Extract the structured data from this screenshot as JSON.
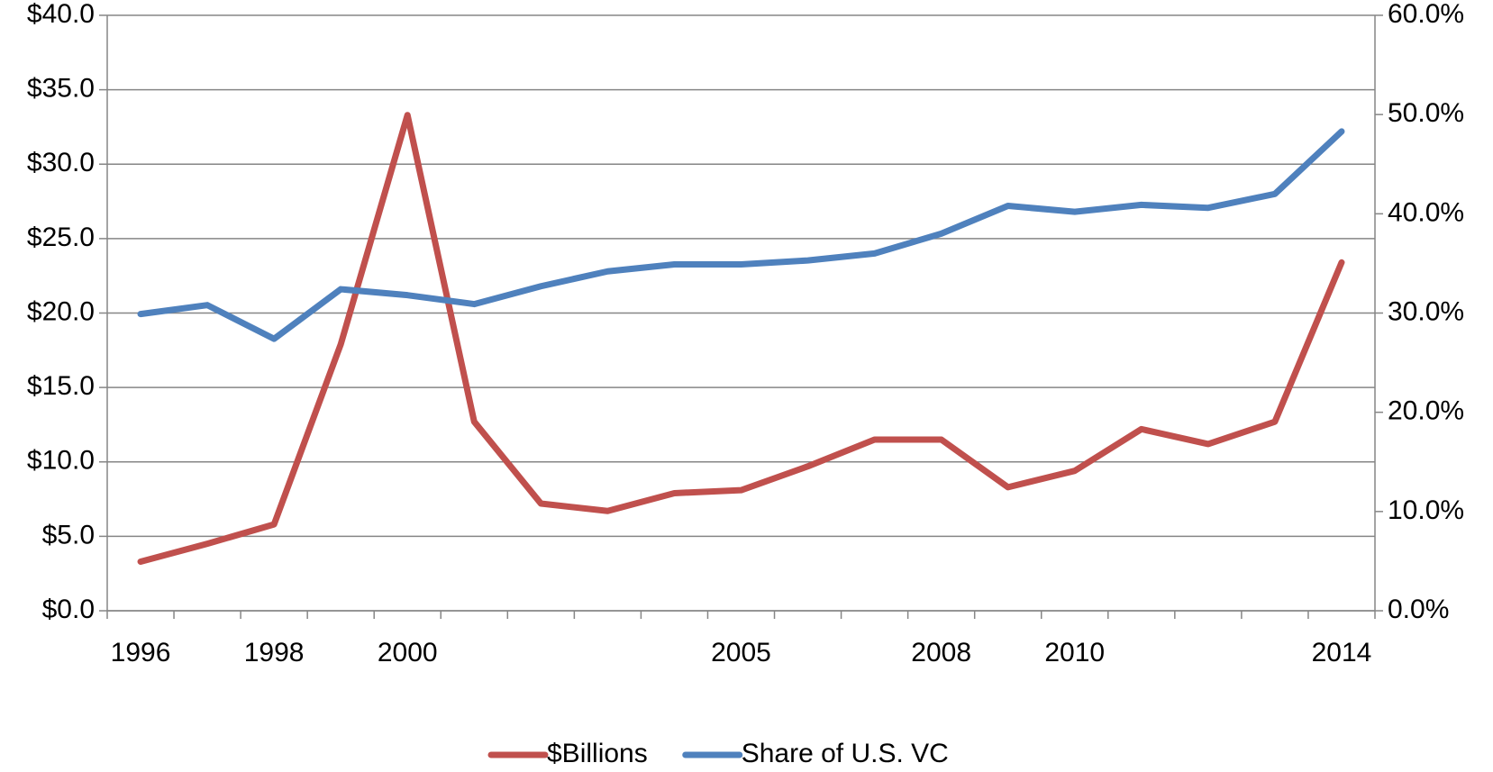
{
  "chart_data": {
    "type": "line",
    "categories": [
      "1996",
      null,
      "1998",
      null,
      "2000",
      null,
      null,
      null,
      null,
      "2005",
      null,
      null,
      "2008",
      null,
      "2010",
      null,
      null,
      null,
      "2014"
    ],
    "series": [
      {
        "name": "$Billions",
        "color": "#c0504d",
        "values": [
          3.3,
          4.5,
          5.8,
          17.9,
          33.3,
          12.7,
          7.2,
          6.7,
          7.9,
          8.1,
          9.7,
          11.5,
          11.5,
          8.3,
          9.4,
          12.2,
          11.2,
          12.7,
          23.4
        ]
      },
      {
        "name": "Share of U.S. VC",
        "color": "#4f81bd",
        "axis": "y2",
        "values": [
          29.9,
          30.8,
          27.4,
          32.4,
          31.8,
          30.9,
          32.7,
          34.2,
          34.9,
          34.9,
          35.3,
          36.0,
          38.0,
          40.8,
          40.2,
          40.9,
          40.6,
          42.0,
          48.3
        ]
      }
    ],
    "ylim": [
      0,
      40
    ],
    "yticks": [
      {
        "value": 0,
        "label": "$0.0"
      },
      {
        "value": 5,
        "label": "$5.0"
      },
      {
        "value": 10,
        "label": "$10.0"
      },
      {
        "value": 15,
        "label": "$15.0"
      },
      {
        "value": 20,
        "label": "$20.0"
      },
      {
        "value": 25,
        "label": "$25.0"
      },
      {
        "value": 30,
        "label": "$30.0"
      },
      {
        "value": 35,
        "label": "$35.0"
      },
      {
        "value": 40,
        "label": "$40.0"
      }
    ],
    "y2lim": [
      0,
      60
    ],
    "y2ticks": [
      {
        "value": 0,
        "label": "0.0%"
      },
      {
        "value": 10,
        "label": "10.0%"
      },
      {
        "value": 20,
        "label": "20.0%"
      },
      {
        "value": 30,
        "label": "30.0%"
      },
      {
        "value": 40,
        "label": "40.0%"
      },
      {
        "value": 50,
        "label": "50.0%"
      },
      {
        "value": 60,
        "label": "60.0%"
      }
    ],
    "grid": true,
    "legend": "bottom"
  }
}
